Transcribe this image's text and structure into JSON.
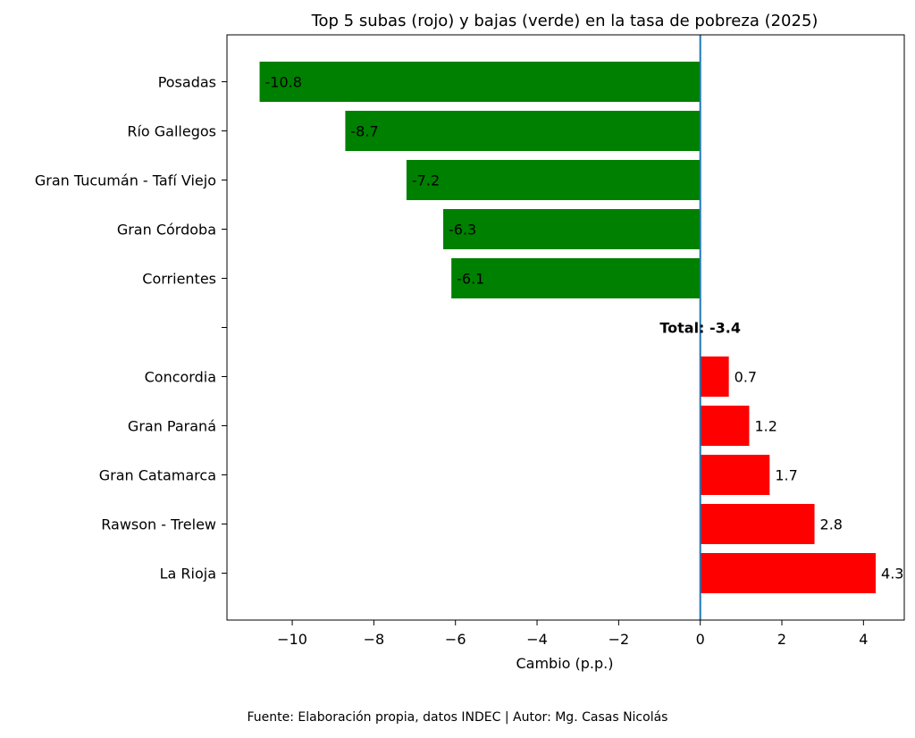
{
  "chart_data": {
    "type": "bar",
    "orientation": "horizontal",
    "title": "Top 5 subas (rojo) y bajas (verde) en la tasa de pobreza (2025)",
    "xlabel": "Cambio (p.p.)",
    "ylabel": "",
    "xlim": [
      -11.6,
      5.0
    ],
    "xticks": [
      -10,
      -8,
      -6,
      -4,
      -2,
      0,
      2,
      4
    ],
    "xtick_labels": [
      "−10",
      "−8",
      "−6",
      "−4",
      "−2",
      "0",
      "2",
      "4"
    ],
    "grid": false,
    "colors": {
      "bajas": "#008000",
      "subas": "#ff0000",
      "zero_line": "#1f77b4"
    },
    "categories": [
      "Posadas",
      "Río Gallegos",
      "Gran Tucumán - Tafí Viejo",
      "Gran Córdoba",
      "Corrientes",
      "",
      "Concordia",
      "Gran Paraná",
      "Gran Catamarca",
      "Rawson - Trelew",
      "La Rioja"
    ],
    "values": [
      -10.8,
      -8.7,
      -7.2,
      -6.3,
      -6.1,
      null,
      0.7,
      1.2,
      1.7,
      2.8,
      4.3
    ],
    "value_labels": [
      "-10.8",
      "-8.7",
      "-7.2",
      "-6.3",
      "-6.1",
      "",
      "0.7",
      "1.2",
      "1.7",
      "2.8",
      "4.3"
    ],
    "total_annotation": {
      "text": "Total: -3.4",
      "value": -3.4
    }
  },
  "footer": "Fuente: Elaboración propia, datos INDEC | Autor: Mg. Casas Nicolás"
}
